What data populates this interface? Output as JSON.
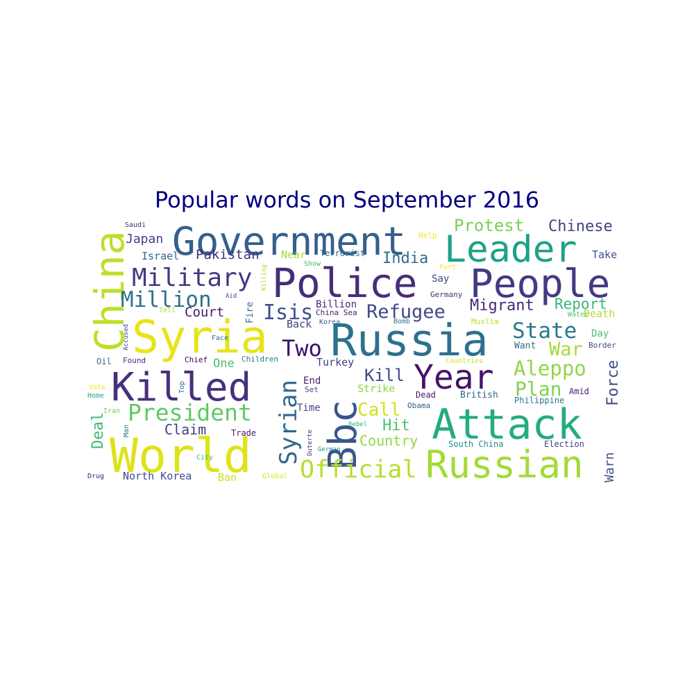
{
  "chart_data": {
    "type": "wordcloud",
    "title": "Popular words on September 2016",
    "words": [
      {
        "text": "Government",
        "color": "#35608d"
      },
      {
        "text": "Leader",
        "color": "#1fa187"
      },
      {
        "text": "Police",
        "color": "#472c7a"
      },
      {
        "text": "People",
        "color": "#443983"
      },
      {
        "text": "Syria",
        "color": "#e7e419"
      },
      {
        "text": "Russia",
        "color": "#2c718e"
      },
      {
        "text": "China",
        "color": "#bddf26"
      },
      {
        "text": "Killed",
        "color": "#46307e"
      },
      {
        "text": "World",
        "color": "#dde318"
      },
      {
        "text": "Attack",
        "color": "#25ab82"
      },
      {
        "text": "Russian",
        "color": "#a2da37"
      },
      {
        "text": "Year",
        "color": "#471365"
      },
      {
        "text": "Bbc",
        "color": "#39568c"
      },
      {
        "text": "Military",
        "color": "#453781"
      },
      {
        "text": "Million",
        "color": "#2d708e"
      },
      {
        "text": "President",
        "color": "#5ec962"
      },
      {
        "text": "Syrian",
        "color": "#31678e"
      },
      {
        "text": "Official",
        "color": "#b5de2b"
      },
      {
        "text": "Two",
        "color": "#3b0f70"
      },
      {
        "text": "Isis",
        "color": "#3b528b"
      },
      {
        "text": "Refugee",
        "color": "#3e4989"
      },
      {
        "text": "Protest",
        "color": "#7ad151"
      },
      {
        "text": "Chinese",
        "color": "#414487"
      },
      {
        "text": "State",
        "color": "#2a788e"
      },
      {
        "text": "Aleppo",
        "color": "#8fd744"
      },
      {
        "text": "Plan",
        "color": "#7fd34e"
      },
      {
        "text": "War",
        "color": "#a5db36"
      },
      {
        "text": "Force",
        "color": "#3e4a89"
      },
      {
        "text": "Migrant",
        "color": "#482878"
      },
      {
        "text": "Report",
        "color": "#35b779"
      },
      {
        "text": "Kill",
        "color": "#3e4989"
      },
      {
        "text": "Call",
        "color": "#d2e21b"
      },
      {
        "text": "Hit",
        "color": "#4ac16d"
      },
      {
        "text": "Country",
        "color": "#93d741"
      },
      {
        "text": "Deal",
        "color": "#3dbc74"
      },
      {
        "text": "Claim",
        "color": "#433e85"
      },
      {
        "text": "Court",
        "color": "#481b6d"
      },
      {
        "text": "Pakistan",
        "color": "#472d7b"
      },
      {
        "text": "India",
        "color": "#2e6e8e"
      },
      {
        "text": "Japan",
        "color": "#433d84"
      },
      {
        "text": "Israel",
        "color": "#33638d"
      },
      {
        "text": "Warn",
        "color": "#3b528b"
      },
      {
        "text": "One",
        "color": "#46c06f"
      },
      {
        "text": "Billion",
        "color": "#482677"
      },
      {
        "text": "Back",
        "color": "#404688"
      },
      {
        "text": "Turkey",
        "color": "#433e85"
      },
      {
        "text": "End",
        "color": "#481f70"
      },
      {
        "text": "Time",
        "color": "#414487"
      },
      {
        "text": "Strike",
        "color": "#8bd646"
      },
      {
        "text": "North Korea",
        "color": "#3e4c8a"
      },
      {
        "text": "Ban",
        "color": "#c8e020"
      },
      {
        "text": "Trade",
        "color": "#481a6c"
      },
      {
        "text": "Say",
        "color": "#3f4788"
      },
      {
        "text": "Near",
        "color": "#a8db34"
      },
      {
        "text": "Take",
        "color": "#3b528b"
      },
      {
        "text": "Death",
        "color": "#b0dd2f"
      },
      {
        "text": "Day",
        "color": "#4ac16d"
      },
      {
        "text": "Want",
        "color": "#2e6d8e"
      },
      {
        "text": "Border",
        "color": "#404688"
      },
      {
        "text": "Amid",
        "color": "#482071"
      },
      {
        "text": "Philippine",
        "color": "#2a768e"
      },
      {
        "text": "British",
        "color": "#31668e"
      },
      {
        "text": "Dead",
        "color": "#481467"
      },
      {
        "text": "Obama",
        "color": "#355e8d"
      },
      {
        "text": "South China",
        "color": "#21918c"
      },
      {
        "text": "Election",
        "color": "#433e85"
      },
      {
        "text": "Terrorist",
        "color": "#2f6c8e"
      },
      {
        "text": "Help",
        "color": "#f1e51d"
      },
      {
        "text": "Show",
        "color": "#3bbb75"
      },
      {
        "text": "Part",
        "color": "#fde725"
      },
      {
        "text": "Germany",
        "color": "#472f7d"
      },
      {
        "text": "Bomb",
        "color": "#2c728e"
      },
      {
        "text": "Muslim",
        "color": "#bade28"
      },
      {
        "text": "Water",
        "color": "#52c569"
      },
      {
        "text": "Countries",
        "color": "#cae11f"
      },
      {
        "text": "China Sea",
        "color": "#481a6c"
      },
      {
        "text": "Children",
        "color": "#287c8e"
      },
      {
        "text": "Chief",
        "color": "#440154"
      },
      {
        "text": "Found",
        "color": "#482979"
      },
      {
        "text": "Oil",
        "color": "#31668e"
      },
      {
        "text": "Face",
        "color": "#2e6f8e"
      },
      {
        "text": "Accused",
        "color": "#3e4a89"
      },
      {
        "text": "Tell",
        "color": "#a8db34"
      },
      {
        "text": "Aid",
        "color": "#3c4f8a"
      },
      {
        "text": "Fire",
        "color": "#31688e"
      },
      {
        "text": "Killing",
        "color": "#addc30"
      },
      {
        "text": "Saudi",
        "color": "#482979"
      },
      {
        "text": "Vote",
        "color": "#eae51a"
      },
      {
        "text": "Home",
        "color": "#20a386"
      },
      {
        "text": "Iran",
        "color": "#75d054"
      },
      {
        "text": "Top",
        "color": "#2e6f8e"
      },
      {
        "text": "Man",
        "color": "#2c718e"
      },
      {
        "text": "City",
        "color": "#35b779"
      },
      {
        "text": "Drug",
        "color": "#481d6f"
      },
      {
        "text": "Global",
        "color": "#d8e219"
      },
      {
        "text": "Duterte",
        "color": "#46327e"
      },
      {
        "text": "German",
        "color": "#23898e"
      },
      {
        "text": "Rebel",
        "color": "#29af7f"
      },
      {
        "text": "Set",
        "color": "#3e4989"
      },
      {
        "text": "Korea",
        "color": "#33638d"
      }
    ]
  }
}
